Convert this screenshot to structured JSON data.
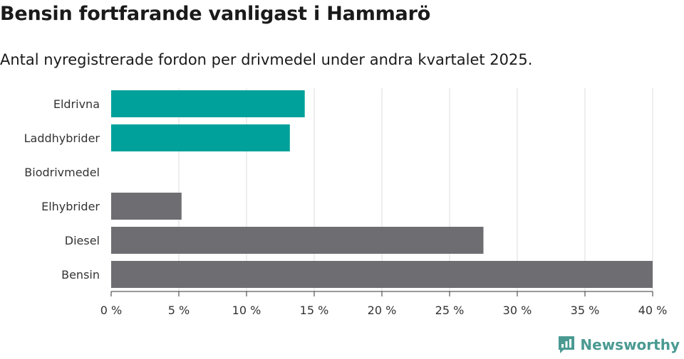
{
  "header": {
    "title": "Bensin fortfarande vanligast i Hammarö",
    "subtitle": "Antal nyregistrerade fordon per drivmedel under andra kvartalet 2025."
  },
  "brand": {
    "name": "Newsworthy",
    "color": "#4a9a92"
  },
  "chart_data": {
    "type": "bar",
    "orientation": "horizontal",
    "categories": [
      "Eldrivna",
      "Laddhybrider",
      "Biodrivmedel",
      "Elhybrider",
      "Diesel",
      "Bensin"
    ],
    "values": [
      14.3,
      13.2,
      0,
      5.2,
      27.5,
      40.0
    ],
    "bar_colors": [
      "#00a19a",
      "#00a19a",
      "#00a19a",
      "#6e6d72",
      "#6e6d72",
      "#6e6d72"
    ],
    "xlim": [
      0,
      40
    ],
    "xticks": [
      0,
      5,
      10,
      15,
      20,
      25,
      30,
      35,
      40
    ],
    "tick_suffix": " %",
    "grid": true
  }
}
